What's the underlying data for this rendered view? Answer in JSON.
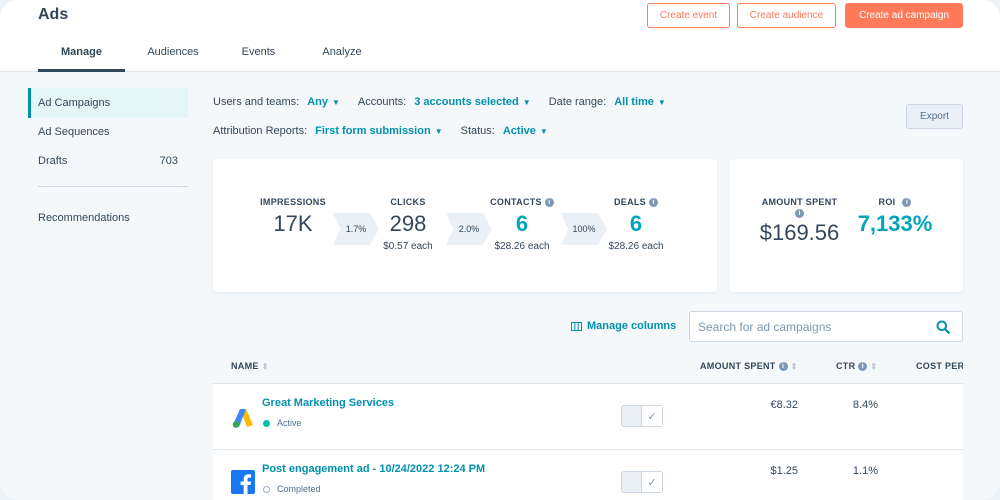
{
  "header": {
    "title": "Ads",
    "buttons": {
      "create_event": "Create event",
      "create_audience": "Create audience",
      "create_campaign": "Create ad campaign"
    },
    "tabs": [
      "Manage",
      "Audiences",
      "Events",
      "Analyze"
    ]
  },
  "sidebar": {
    "items": [
      {
        "label": "Ad Campaigns",
        "count": ""
      },
      {
        "label": "Ad Sequences",
        "count": ""
      },
      {
        "label": "Drafts",
        "count": "703"
      },
      {
        "label": "Recommendations",
        "count": ""
      }
    ]
  },
  "filters": {
    "users_label": "Users and teams:",
    "users_value": "Any",
    "accounts_label": "Accounts:",
    "accounts_value": "3 accounts selected",
    "date_label": "Date range:",
    "date_value": "All time",
    "attribution_label": "Attribution Reports:",
    "attribution_value": "First form submission",
    "status_label": "Status:",
    "status_value": "Active",
    "export": "Export"
  },
  "funnel": {
    "impressions": {
      "label": "IMPRESSIONS",
      "value": "17K"
    },
    "clicks": {
      "label": "CLICKS",
      "value": "298",
      "sub": "$0.57 each"
    },
    "contacts": {
      "label": "CONTACTS",
      "value": "6",
      "sub": "$28.26 each"
    },
    "deals": {
      "label": "DEALS",
      "value": "6",
      "sub": "$28.26 each"
    },
    "rates": [
      "1.7%",
      "2.0%",
      "100%"
    ]
  },
  "summary": {
    "spent_label": "AMOUNT SPENT",
    "spent_value": "$169.56",
    "roi_label": "ROI",
    "roi_value": "7,133%"
  },
  "table_tools": {
    "manage_columns": "Manage columns",
    "search_placeholder": "Search for ad campaigns"
  },
  "table": {
    "columns": {
      "name": "NAME",
      "amount_spent": "AMOUNT SPENT",
      "ctr": "CTR",
      "cost_per": "COST PER"
    },
    "rows": [
      {
        "name": "Great Marketing Services",
        "status": "Active",
        "amount_spent": "€8.32",
        "ctr": "8.4%",
        "logo": "google-ads-icon"
      },
      {
        "name": "Post engagement ad - 10/24/2022 12:24 PM",
        "status": "Completed",
        "amount_spent": "$1.25",
        "ctr": "1.1%",
        "logo": "facebook-icon"
      }
    ]
  },
  "colors": {
    "accent_orange": "#ff7a59",
    "link_teal": "#0091ae",
    "highlight_teal": "#00a4bd",
    "text": "#33475b",
    "active_status": "#00bda5",
    "facebook_blue": "#1877f2"
  }
}
